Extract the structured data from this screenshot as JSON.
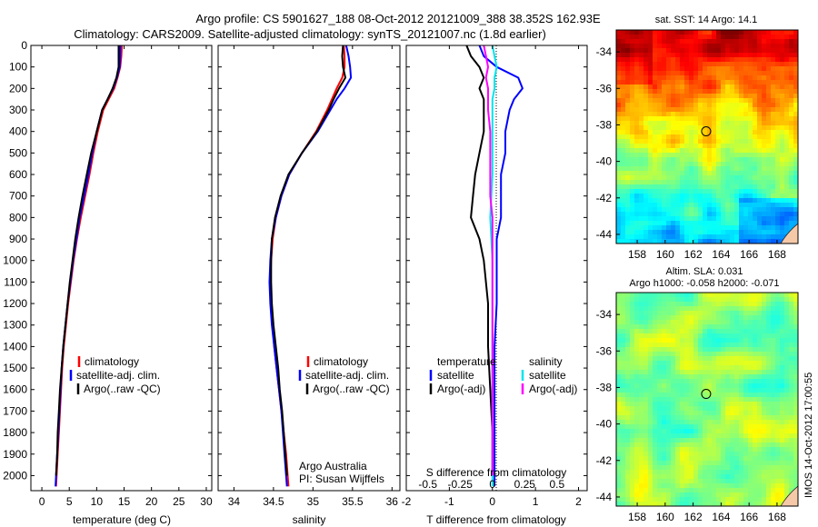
{
  "header": {
    "title_line1": "Argo profile: CS 5901627_188 08-Oct-2012 20121009_388 38.352S 162.93E",
    "title_line2": "Climatology: CARS2009. Satellite-adjusted climatology: synTS_20121007.nc (1.8d earlier)"
  },
  "colors": {
    "climatology": "#ff0000",
    "satellite": "#0000ff",
    "argo": "#000000",
    "salinity_satellite": "#00e5ee",
    "salinity_argo": "#ff00ff",
    "land": "#f5c9a8"
  },
  "chart_data": [
    {
      "type": "line",
      "panel": "temperature",
      "xlabel": "temperature (deg C)",
      "xlim": [
        -2,
        31
      ],
      "ylim": [
        2070,
        0
      ],
      "xticks": [
        0,
        5,
        10,
        15,
        20,
        25,
        30
      ],
      "yticks": [
        0,
        100,
        200,
        300,
        400,
        500,
        600,
        700,
        800,
        900,
        1000,
        1100,
        1200,
        1300,
        1400,
        1500,
        1600,
        1700,
        1800,
        1900,
        2000
      ],
      "legend": [
        "climatology",
        "satellite-adj. clim.",
        "Argo(..raw -QC)"
      ],
      "legend_position": "lower-right",
      "series": [
        {
          "name": "climatology",
          "color_key": "climatology",
          "points": [
            [
              14.6,
              0
            ],
            [
              14.5,
              50
            ],
            [
              14.3,
              100
            ],
            [
              13.8,
              150
            ],
            [
              13.2,
              200
            ],
            [
              12.2,
              250
            ],
            [
              11.2,
              300
            ],
            [
              10.2,
              400
            ],
            [
              9.4,
              500
            ],
            [
              8.7,
              600
            ],
            [
              7.9,
              700
            ],
            [
              7.1,
              800
            ],
            [
              6.4,
              900
            ],
            [
              5.8,
              1000
            ],
            [
              5.3,
              1100
            ],
            [
              4.8,
              1200
            ],
            [
              4.4,
              1300
            ],
            [
              4.0,
              1400
            ],
            [
              3.7,
              1500
            ],
            [
              3.5,
              1600
            ],
            [
              3.3,
              1700
            ],
            [
              3.1,
              1800
            ],
            [
              2.9,
              1900
            ],
            [
              2.7,
              2000
            ],
            [
              2.6,
              2050
            ]
          ]
        },
        {
          "name": "satellite-adj. clim.",
          "color_key": "satellite",
          "points": [
            [
              14.3,
              0
            ],
            [
              14.3,
              50
            ],
            [
              14.2,
              100
            ],
            [
              13.7,
              150
            ],
            [
              13.0,
              200
            ],
            [
              12.0,
              250
            ],
            [
              11.0,
              300
            ],
            [
              10.0,
              400
            ],
            [
              9.2,
              500
            ],
            [
              8.5,
              600
            ],
            [
              7.7,
              700
            ],
            [
              6.9,
              800
            ],
            [
              6.3,
              900
            ],
            [
              5.7,
              1000
            ],
            [
              5.2,
              1100
            ],
            [
              4.7,
              1200
            ],
            [
              4.3,
              1300
            ],
            [
              3.9,
              1400
            ],
            [
              3.6,
              1500
            ],
            [
              3.4,
              1600
            ],
            [
              3.2,
              1700
            ],
            [
              3.0,
              1800
            ],
            [
              2.8,
              1900
            ],
            [
              2.6,
              2000
            ],
            [
              2.5,
              2050
            ]
          ]
        },
        {
          "name": "Argo(..raw -QC)",
          "color_key": "argo",
          "points": [
            [
              14.0,
              0
            ],
            [
              14.0,
              50
            ],
            [
              14.0,
              100
            ],
            [
              13.6,
              150
            ],
            [
              12.9,
              200
            ],
            [
              12.0,
              250
            ],
            [
              11.0,
              300
            ],
            [
              10.0,
              400
            ],
            [
              9.0,
              500
            ],
            [
              8.2,
              600
            ],
            [
              7.4,
              700
            ],
            [
              6.7,
              800
            ],
            [
              6.1,
              900
            ],
            [
              5.6,
              1000
            ],
            [
              5.1,
              1100
            ],
            [
              4.7,
              1200
            ],
            [
              4.3,
              1300
            ],
            [
              3.9,
              1400
            ],
            [
              3.6,
              1500
            ],
            [
              3.3,
              1600
            ],
            [
              3.1,
              1700
            ],
            [
              2.9,
              1800
            ],
            [
              2.8,
              1900
            ],
            [
              2.6,
              2000
            ]
          ]
        }
      ]
    },
    {
      "type": "line",
      "panel": "salinity",
      "xlabel": "salinity",
      "xlim": [
        33.8,
        36.1
      ],
      "ylim": [
        2070,
        0
      ],
      "xticks": [
        34,
        34.5,
        35,
        35.5,
        36
      ],
      "legend": [
        "climatology",
        "satellite-adj. clim.",
        "Argo(..raw -QC)"
      ],
      "legend_position": "lower-right",
      "annotation": [
        "Argo Australia",
        "PI: Susan Wijffels"
      ],
      "series": [
        {
          "name": "climatology",
          "color_key": "climatology",
          "points": [
            [
              35.39,
              0
            ],
            [
              35.4,
              50
            ],
            [
              35.4,
              100
            ],
            [
              35.37,
              150
            ],
            [
              35.3,
              200
            ],
            [
              35.24,
              250
            ],
            [
              35.18,
              300
            ],
            [
              35.04,
              400
            ],
            [
              34.86,
              500
            ],
            [
              34.7,
              600
            ],
            [
              34.6,
              700
            ],
            [
              34.53,
              800
            ],
            [
              34.49,
              900
            ],
            [
              34.47,
              1000
            ],
            [
              34.46,
              1100
            ],
            [
              34.47,
              1200
            ],
            [
              34.49,
              1300
            ],
            [
              34.51,
              1400
            ],
            [
              34.54,
              1500
            ],
            [
              34.57,
              1600
            ],
            [
              34.6,
              1700
            ],
            [
              34.63,
              1800
            ],
            [
              34.66,
              1900
            ],
            [
              34.68,
              2000
            ],
            [
              34.69,
              2050
            ]
          ]
        },
        {
          "name": "satellite-adj. clim.",
          "color_key": "satellite",
          "points": [
            [
              35.42,
              0
            ],
            [
              35.45,
              50
            ],
            [
              35.47,
              100
            ],
            [
              35.48,
              150
            ],
            [
              35.4,
              200
            ],
            [
              35.3,
              250
            ],
            [
              35.22,
              300
            ],
            [
              35.06,
              400
            ],
            [
              34.86,
              500
            ],
            [
              34.7,
              600
            ],
            [
              34.6,
              700
            ],
            [
              34.53,
              800
            ],
            [
              34.48,
              900
            ],
            [
              34.46,
              1000
            ],
            [
              34.45,
              1100
            ],
            [
              34.46,
              1200
            ],
            [
              34.48,
              1300
            ],
            [
              34.51,
              1400
            ],
            [
              34.54,
              1500
            ],
            [
              34.57,
              1600
            ],
            [
              34.6,
              1700
            ],
            [
              34.62,
              1800
            ],
            [
              34.64,
              1900
            ],
            [
              34.66,
              2000
            ],
            [
              34.67,
              2050
            ]
          ]
        },
        {
          "name": "Argo(..raw -QC)",
          "color_key": "argo",
          "points": [
            [
              35.38,
              0
            ],
            [
              35.37,
              50
            ],
            [
              35.38,
              100
            ],
            [
              35.41,
              150
            ],
            [
              35.33,
              200
            ],
            [
              35.26,
              250
            ],
            [
              35.2,
              300
            ],
            [
              35.05,
              400
            ],
            [
              34.86,
              500
            ],
            [
              34.69,
              600
            ],
            [
              34.59,
              700
            ],
            [
              34.52,
              800
            ],
            [
              34.48,
              900
            ],
            [
              34.47,
              1000
            ],
            [
              34.47,
              1100
            ],
            [
              34.48,
              1200
            ],
            [
              34.5,
              1300
            ],
            [
              34.53,
              1400
            ],
            [
              34.56,
              1500
            ],
            [
              34.58,
              1600
            ],
            [
              34.61,
              1700
            ],
            [
              34.63,
              1800
            ],
            [
              34.65,
              1900
            ],
            [
              34.67,
              2000
            ]
          ]
        }
      ]
    },
    {
      "type": "line",
      "panel": "difference",
      "xlabel": "T difference from climatology",
      "xlabel_top": "S difference from climatology",
      "xlim": [
        -2,
        2.2
      ],
      "ylim": [
        2070,
        0
      ],
      "xticks": [
        -2,
        -1,
        0,
        1,
        2
      ],
      "sticks": [
        "-0.5",
        "-0.25",
        "0",
        "0.25",
        "0.5"
      ],
      "legend_temperature": [
        "temperature",
        "satellite",
        "Argo(-adj)"
      ],
      "legend_salinity": [
        "salinity",
        "satellite",
        "Argo(-adj)"
      ],
      "series": [
        {
          "name": "temperature satellite",
          "color_key": "satellite",
          "points": [
            [
              -0.3,
              0
            ],
            [
              -0.2,
              50
            ],
            [
              0.1,
              100
            ],
            [
              0.6,
              150
            ],
            [
              0.7,
              200
            ],
            [
              0.5,
              250
            ],
            [
              0.4,
              300
            ],
            [
              0.3,
              400
            ],
            [
              0.3,
              500
            ],
            [
              0.2,
              600
            ],
            [
              0.2,
              700
            ],
            [
              0.2,
              800
            ],
            [
              0.1,
              900
            ],
            [
              0.1,
              1000
            ],
            [
              0.1,
              1200
            ],
            [
              0.05,
              1400
            ],
            [
              0.05,
              1600
            ],
            [
              0.05,
              1800
            ],
            [
              0.05,
              2000
            ],
            [
              0.05,
              2050
            ]
          ]
        },
        {
          "name": "temperature Argo(-adj)",
          "color_key": "argo",
          "points": [
            [
              -0.6,
              0
            ],
            [
              -0.5,
              50
            ],
            [
              -0.3,
              100
            ],
            [
              -0.2,
              150
            ],
            [
              -0.3,
              200
            ],
            [
              -0.2,
              250
            ],
            [
              -0.2,
              300
            ],
            [
              -0.2,
              400
            ],
            [
              -0.3,
              500
            ],
            [
              -0.4,
              600
            ],
            [
              -0.45,
              700
            ],
            [
              -0.5,
              800
            ],
            [
              -0.3,
              900
            ],
            [
              -0.2,
              1000
            ],
            [
              -0.1,
              1200
            ],
            [
              -0.1,
              1400
            ],
            [
              -0.05,
              1600
            ],
            [
              0.0,
              1800
            ],
            [
              0.0,
              2000
            ]
          ]
        },
        {
          "name": "salinity satellite",
          "color_key": "salinity_satellite",
          "points": [
            [
              0.0,
              0
            ],
            [
              0.05,
              50
            ],
            [
              0.1,
              100
            ],
            [
              0.05,
              150
            ],
            [
              0.05,
              200
            ],
            [
              0.0,
              250
            ],
            [
              0.0,
              400
            ],
            [
              0.0,
              600
            ],
            [
              -0.05,
              800
            ],
            [
              0.0,
              1000
            ],
            [
              0.0,
              1200
            ],
            [
              0.0,
              1400
            ],
            [
              0.0,
              1600
            ],
            [
              0.0,
              1800
            ],
            [
              0.0,
              2000
            ],
            [
              0.0,
              2050
            ]
          ]
        },
        {
          "name": "salinity Argo(-adj)",
          "color_key": "salinity_argo",
          "points": [
            [
              -0.2,
              0
            ],
            [
              -0.15,
              50
            ],
            [
              -0.1,
              100
            ],
            [
              -0.15,
              150
            ],
            [
              -0.1,
              200
            ],
            [
              -0.1,
              250
            ],
            [
              -0.1,
              300
            ],
            [
              -0.05,
              400
            ],
            [
              -0.05,
              500
            ],
            [
              -0.05,
              600
            ],
            [
              -0.05,
              700
            ],
            [
              0.0,
              800
            ],
            [
              0.0,
              1000
            ],
            [
              0.0,
              1200
            ],
            [
              0.0,
              1400
            ],
            [
              0.0,
              1600
            ],
            [
              0.0,
              1800
            ],
            [
              0.0,
              2000
            ]
          ]
        }
      ]
    },
    {
      "type": "heatmap",
      "panel": "sst-map",
      "title": "sat. SST: 14 Argo: 14.1",
      "xticks": [
        "158",
        "160",
        "162",
        "164",
        "166",
        "168"
      ],
      "yticks": [
        "-34",
        "-36",
        "-38",
        "-40",
        "-42",
        "-44"
      ],
      "xlim": [
        156.5,
        169.5
      ],
      "ylim": [
        -44.5,
        -32.8
      ],
      "marker": {
        "lon": 162.93,
        "lat": -38.352
      }
    },
    {
      "type": "heatmap",
      "panel": "sla-map",
      "title": "Altim. SLA: 0.031",
      "subtitle": "Argo h1000: -0.058 h2000: -0.071",
      "xticks": [
        "158",
        "160",
        "162",
        "164",
        "166",
        "168"
      ],
      "yticks": [
        "-34",
        "-36",
        "-38",
        "-40",
        "-42",
        "-44"
      ],
      "xlim": [
        156.5,
        169.5
      ],
      "ylim": [
        -44.5,
        -32.8
      ],
      "marker": {
        "lon": 162.93,
        "lat": -38.352
      }
    }
  ],
  "footer": {
    "stamp": "IMOS 14-Oct-2012 17:00:55"
  }
}
